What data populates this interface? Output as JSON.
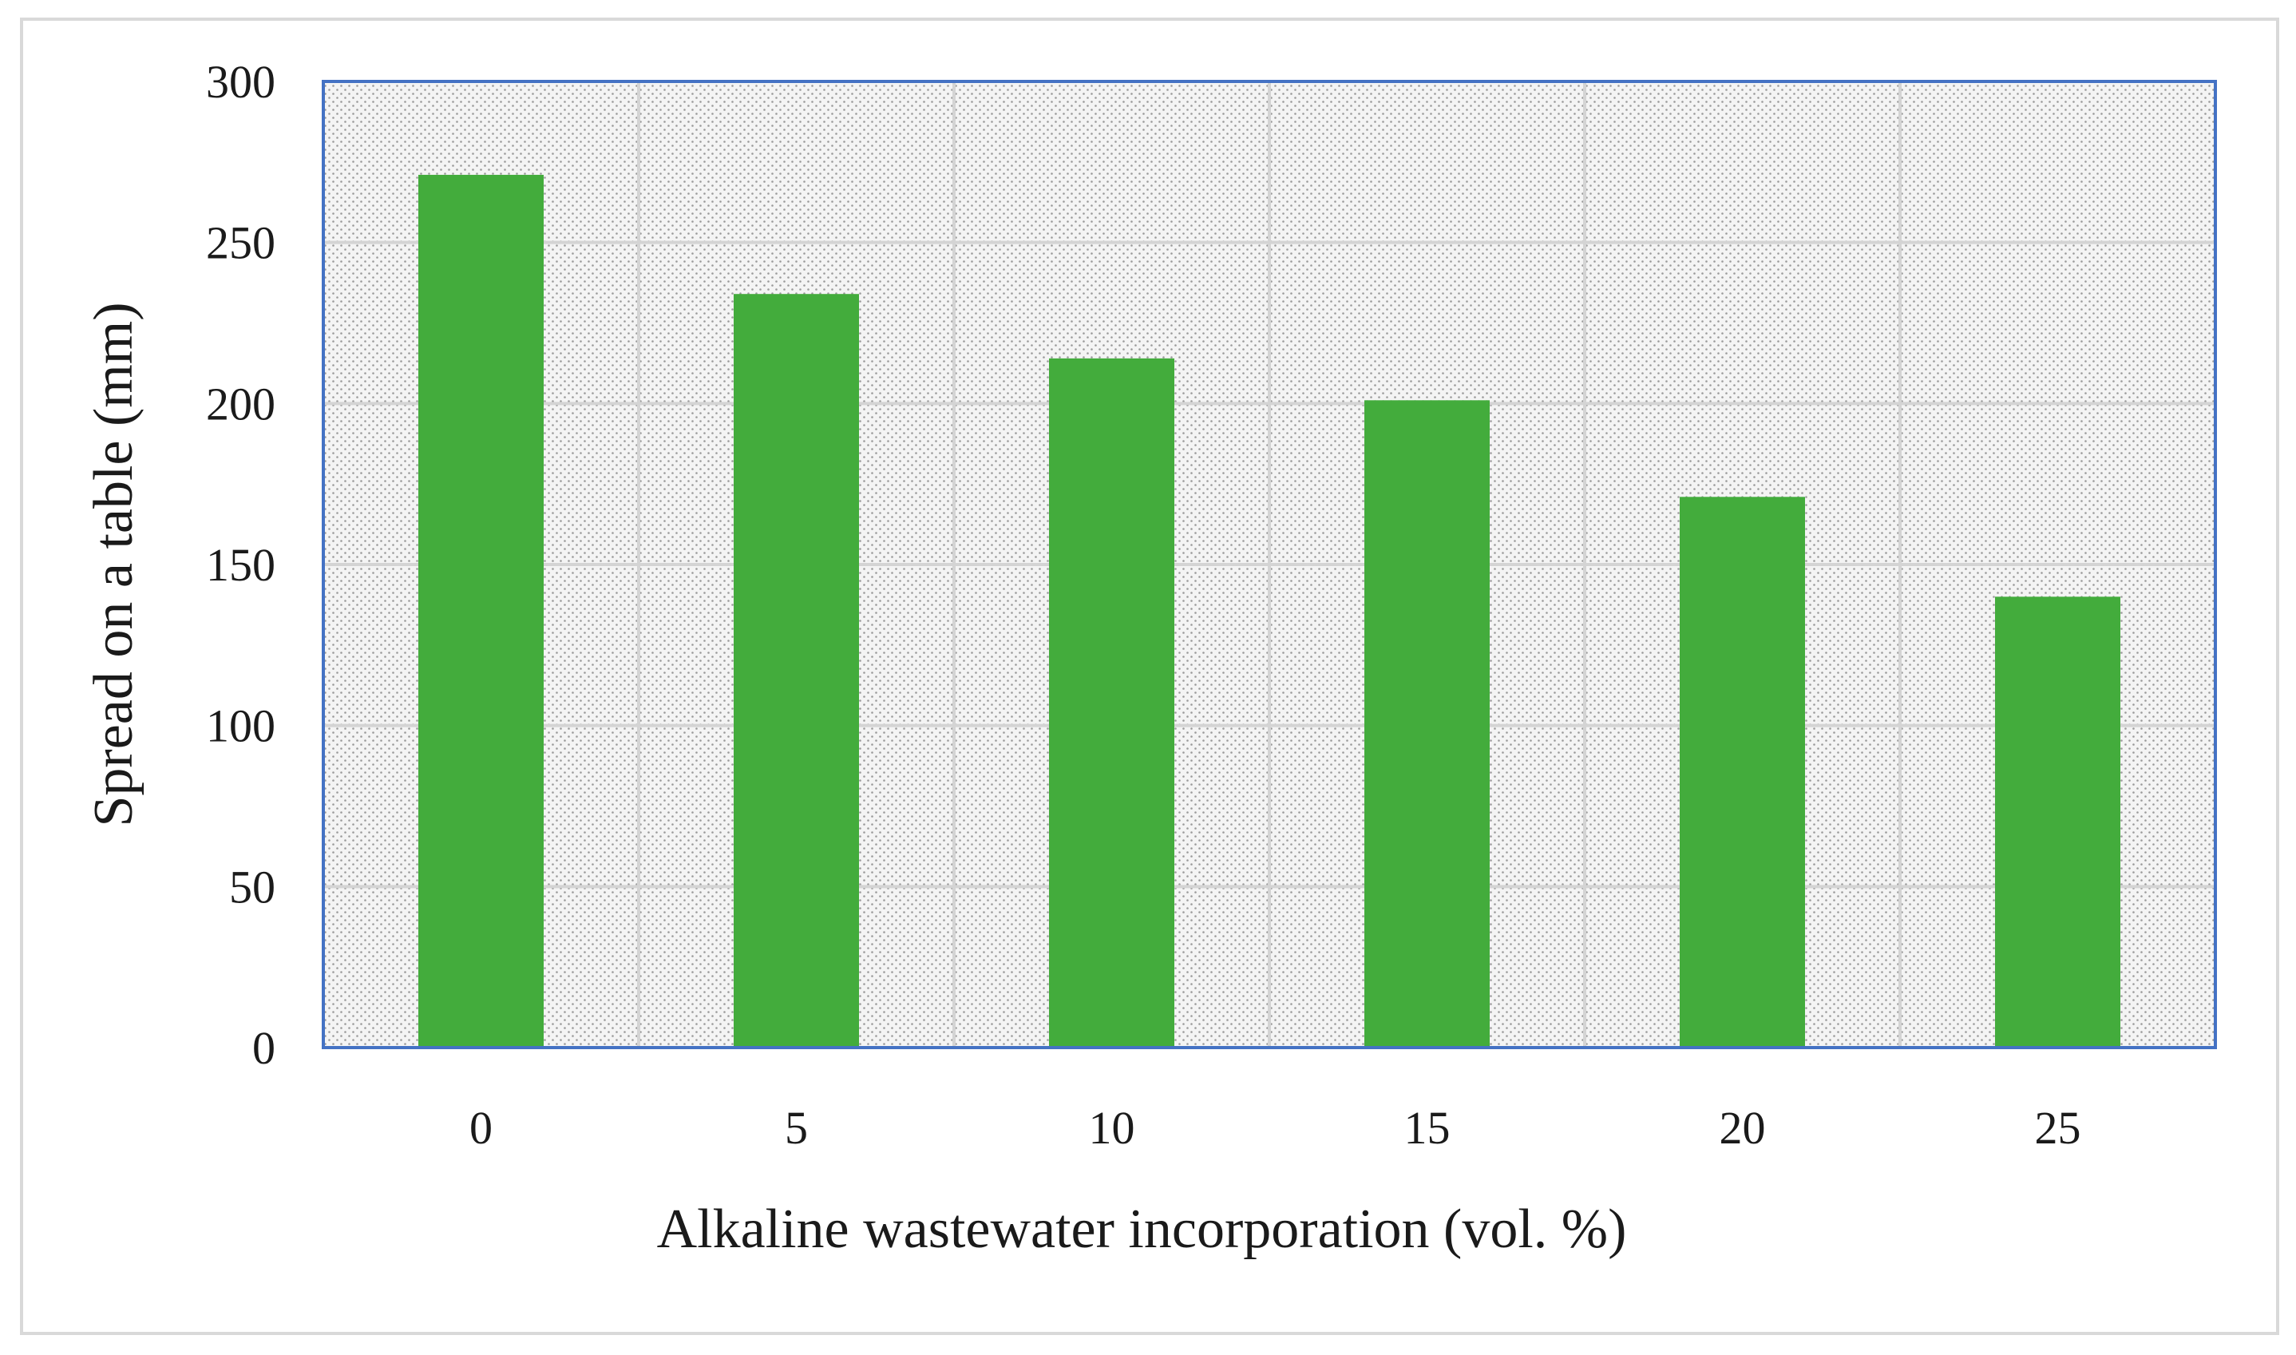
{
  "chart_data": {
    "type": "bar",
    "categories": [
      "0",
      "5",
      "10",
      "15",
      "20",
      "25"
    ],
    "values": [
      271,
      234,
      214,
      201,
      171,
      140
    ],
    "title": "",
    "xlabel": "Alkaline wastewater incorporation (vol. %)",
    "ylabel": "Spread on a table  (mm)",
    "ylim": [
      0,
      300
    ],
    "yticks": [
      "0",
      "50",
      "100",
      "150",
      "200",
      "250",
      "300"
    ],
    "grid": true,
    "legend": "none",
    "colors": {
      "bar": "#43ac3c",
      "plot_border": "#4472c4",
      "grid": "#d4d4d4",
      "plot_background": "#f4f4f4",
      "pattern_dot": "#9a9a9a"
    }
  }
}
